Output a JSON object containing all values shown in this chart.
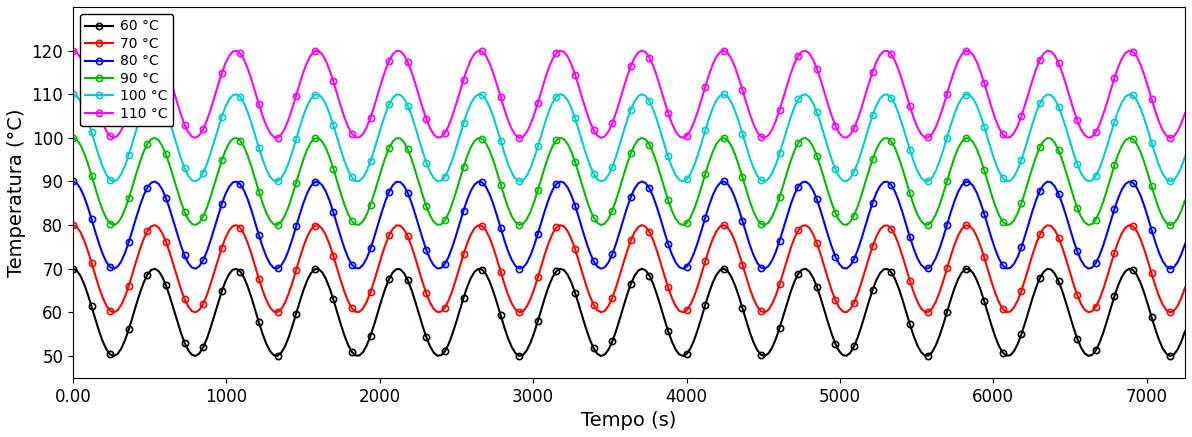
{
  "title": "",
  "xlabel": "Tempo (s)",
  "ylabel": "Temperatura (°C)",
  "xlim": [
    0,
    7250
  ],
  "ylim": [
    45,
    130
  ],
  "xticks": [
    0,
    1000,
    2000,
    3000,
    4000,
    5000,
    6000,
    7000
  ],
  "yticks": [
    50,
    60,
    70,
    80,
    90,
    100,
    110,
    120
  ],
  "series": [
    {
      "label": "60 °C",
      "color": "#000000",
      "mean": 60,
      "amp": 10,
      "phase": 1.57
    },
    {
      "label": "70 °C",
      "color": "#ff0000",
      "mean": 70,
      "amp": 10,
      "phase": 1.57
    },
    {
      "label": "80 °C",
      "color": "#0000ff",
      "mean": 80,
      "amp": 10,
      "phase": 1.57
    },
    {
      "label": "90 °C",
      "color": "#00bb00",
      "mean": 90,
      "amp": 10,
      "phase": 1.57
    },
    {
      "label": "100 °C",
      "color": "#00cccc",
      "mean": 100,
      "amp": 10,
      "phase": 1.57
    },
    {
      "label": "110 °C",
      "color": "#ff00ff",
      "mean": 110,
      "amp": 10,
      "phase": 1.57
    }
  ],
  "period": 530,
  "n_points": 300,
  "marker": "o",
  "marker_size": 4.5,
  "markevery": 5,
  "linewidth": 1.5,
  "x_start": 0,
  "x_end": 7250,
  "xlabel_fontsize": 14,
  "ylabel_fontsize": 14,
  "tick_fontsize": 12,
  "legend_fontsize": 10,
  "fig_width": 11.92,
  "fig_height": 4.37,
  "dpi": 100
}
